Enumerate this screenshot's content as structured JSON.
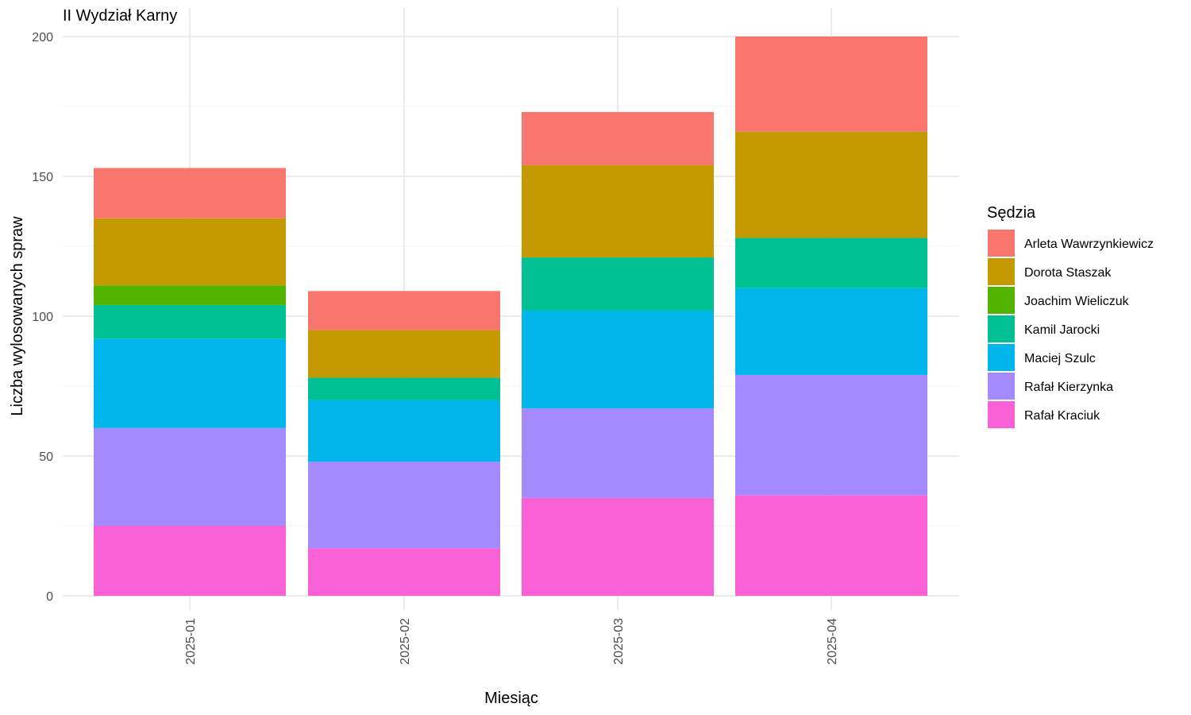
{
  "chart_data": {
    "type": "bar",
    "stacked": true,
    "title": "II Wydział Karny",
    "xlabel": "Miesiąc",
    "ylabel": "Liczba wylosowanych spraw",
    "categories": [
      "2025-01",
      "2025-02",
      "2025-03",
      "2025-04"
    ],
    "ylim": [
      0,
      200
    ],
    "yticks": [
      0,
      50,
      100,
      150,
      200
    ],
    "grid": true,
    "legend": {
      "title": "Sędzia",
      "position": "right"
    },
    "series": [
      {
        "name": "Rafał Kraciuk",
        "color": "#FB61D7",
        "values": [
          25,
          17,
          35,
          36
        ]
      },
      {
        "name": "Rafał Kierzynka",
        "color": "#A58AFF",
        "values": [
          35,
          31,
          32,
          43
        ]
      },
      {
        "name": "Maciej Szulc",
        "color": "#00B6EB",
        "values": [
          32,
          22,
          35,
          31
        ]
      },
      {
        "name": "Kamil Jarocki",
        "color": "#00C094",
        "values": [
          12,
          8,
          19,
          18
        ]
      },
      {
        "name": "Joachim Wieliczuk",
        "color": "#53B400",
        "values": [
          7,
          0,
          0,
          0
        ]
      },
      {
        "name": "Dorota Staszak",
        "color": "#C49A00",
        "values": [
          24,
          17,
          33,
          38
        ]
      },
      {
        "name": "Arleta Wawrzynkiewicz",
        "color": "#F8766D",
        "values": [
          18,
          14,
          19,
          34
        ]
      }
    ],
    "legend_order": [
      "Arleta Wawrzynkiewicz",
      "Dorota Staszak",
      "Joachim Wieliczuk",
      "Kamil Jarocki",
      "Maciej Szulc",
      "Rafał Kierzynka",
      "Rafał Kraciuk"
    ]
  }
}
